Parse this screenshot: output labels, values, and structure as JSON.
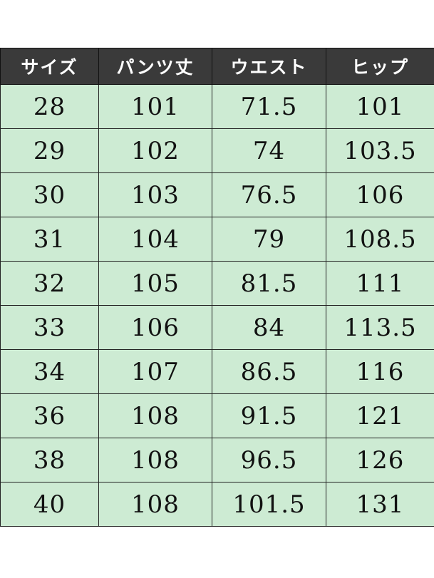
{
  "table": {
    "headers": [
      "サイズ",
      "パンツ丈",
      "ウエスト",
      "ヒップ"
    ],
    "rows": [
      [
        "28",
        "101",
        "71.5",
        "101"
      ],
      [
        "29",
        "102",
        "74",
        "103.5"
      ],
      [
        "30",
        "103",
        "76.5",
        "106"
      ],
      [
        "31",
        "104",
        "79",
        "108.5"
      ],
      [
        "32",
        "105",
        "81.5",
        "111"
      ],
      [
        "33",
        "106",
        "84",
        "113.5"
      ],
      [
        "34",
        "107",
        "86.5",
        "116"
      ],
      [
        "36",
        "108",
        "91.5",
        "121"
      ],
      [
        "38",
        "108",
        "96.5",
        "126"
      ],
      [
        "40",
        "108",
        "101.5",
        "131"
      ]
    ],
    "colors": {
      "header_bg": "#3a3a3a",
      "header_text": "#ffffff",
      "cell_bg": "#cdebd3"
    }
  }
}
